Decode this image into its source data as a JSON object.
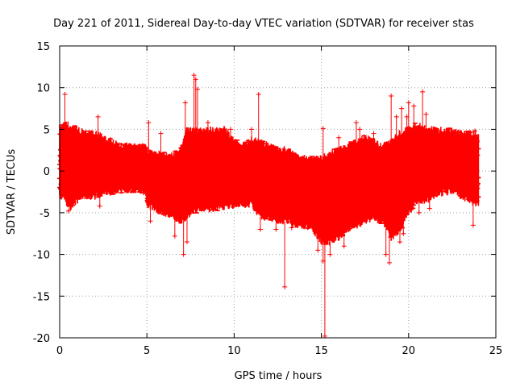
{
  "chart_data": {
    "type": "scatter",
    "title": "Day 221 of 2011, Sidereal Day-to-day VTEC variation (SDTVAR) for receiver stas",
    "xlabel": "GPS time / hours",
    "ylabel": "SDTVAR / TECUs",
    "xlim": [
      0,
      25
    ],
    "ylim": [
      -20,
      15
    ],
    "xticks": [
      0,
      5,
      10,
      15,
      20,
      25
    ],
    "yticks": [
      15,
      10,
      5,
      0,
      -5,
      -10,
      -15,
      -20
    ],
    "grid": true,
    "marker": "+",
    "color": "#ff0000",
    "series": [
      {
        "name": "SDTVAR",
        "band_x": [
          0,
          0.3,
          0.5,
          1,
          1.5,
          2,
          2.5,
          3,
          3.5,
          4,
          4.5,
          4.9,
          5.0,
          5.5,
          6,
          6.5,
          7,
          7.3,
          7.5,
          8,
          8.5,
          9,
          9.5,
          10,
          10.5,
          11,
          11.5,
          12,
          12.5,
          13,
          13.5,
          14,
          14.5,
          15,
          15.5,
          16,
          16.5,
          17,
          17.5,
          18,
          18.5,
          19,
          19.5,
          20,
          20.5,
          21,
          21.5,
          22,
          22.5,
          23,
          23.5,
          24
        ],
        "band_upper": [
          5.5,
          5.5,
          5.5,
          5.0,
          4.5,
          4.5,
          4.0,
          3.5,
          3.0,
          3.0,
          2.8,
          3.0,
          2.5,
          2.0,
          2.0,
          1.8,
          3.0,
          5.0,
          4.8,
          4.8,
          5.0,
          4.8,
          5.0,
          3.5,
          3.0,
          3.8,
          3.5,
          3.0,
          2.8,
          2.5,
          2.0,
          1.5,
          1.5,
          1.5,
          2.0,
          2.5,
          3.0,
          3.5,
          4.0,
          3.5,
          3.0,
          3.5,
          4.5,
          5.0,
          5.5,
          5.0,
          5.0,
          4.8,
          4.8,
          4.5,
          4.5,
          4.5
        ],
        "band_lower": [
          -3.0,
          -3.0,
          -4.5,
          -3.5,
          -3.0,
          -3.0,
          -2.5,
          -2.5,
          -2.3,
          -2.2,
          -2.2,
          -2.5,
          -4.0,
          -4.5,
          -5.0,
          -5.5,
          -6.0,
          -5.5,
          -5.0,
          -4.5,
          -4.5,
          -4.5,
          -4.2,
          -4.2,
          -4.0,
          -4.0,
          -5.5,
          -5.5,
          -6.0,
          -6.0,
          -6.5,
          -6.5,
          -7.0,
          -8.5,
          -8.5,
          -8.0,
          -7.0,
          -6.5,
          -6.0,
          -5.5,
          -6.0,
          -8.0,
          -7.0,
          -5.0,
          -3.5,
          -3.5,
          -3.0,
          -2.5,
          -2.5,
          -3.0,
          -3.5,
          -4.0
        ],
        "spikes": [
          {
            "x": 0.3,
            "y": 9.2
          },
          {
            "x": 0.5,
            "y": -4.8
          },
          {
            "x": 2.2,
            "y": 6.5
          },
          {
            "x": 2.3,
            "y": -4.2
          },
          {
            "x": 5.1,
            "y": 5.8
          },
          {
            "x": 5.2,
            "y": -6.0
          },
          {
            "x": 5.8,
            "y": 4.5
          },
          {
            "x": 6.6,
            "y": -7.8
          },
          {
            "x": 7.1,
            "y": -10.0
          },
          {
            "x": 7.3,
            "y": -8.5
          },
          {
            "x": 7.2,
            "y": 8.2
          },
          {
            "x": 7.7,
            "y": 11.5
          },
          {
            "x": 7.8,
            "y": 11.0
          },
          {
            "x": 7.9,
            "y": 9.8
          },
          {
            "x": 8.5,
            "y": 5.8
          },
          {
            "x": 9.8,
            "y": 5.0
          },
          {
            "x": 11.4,
            "y": 9.2
          },
          {
            "x": 11.5,
            "y": -7.0
          },
          {
            "x": 11.0,
            "y": 5.0
          },
          {
            "x": 12.4,
            "y": -7.0
          },
          {
            "x": 12.9,
            "y": -13.9
          },
          {
            "x": 13.3,
            "y": -6.8
          },
          {
            "x": 14.8,
            "y": -9.5
          },
          {
            "x": 15.1,
            "y": 5.1
          },
          {
            "x": 15.1,
            "y": -10.8
          },
          {
            "x": 15.5,
            "y": -10.0
          },
          {
            "x": 15.2,
            "y": -19.8
          },
          {
            "x": 16.3,
            "y": -9.0
          },
          {
            "x": 16.0,
            "y": 4.0
          },
          {
            "x": 17.0,
            "y": 5.8
          },
          {
            "x": 17.2,
            "y": 5.0
          },
          {
            "x": 18.0,
            "y": 4.5
          },
          {
            "x": 18.7,
            "y": -10.0
          },
          {
            "x": 18.9,
            "y": -11.0
          },
          {
            "x": 19.0,
            "y": 9.0
          },
          {
            "x": 19.3,
            "y": 6.5
          },
          {
            "x": 19.5,
            "y": -8.5
          },
          {
            "x": 19.7,
            "y": -7.5
          },
          {
            "x": 19.6,
            "y": 7.5
          },
          {
            "x": 19.9,
            "y": 6.5
          },
          {
            "x": 20.0,
            "y": 8.2
          },
          {
            "x": 20.3,
            "y": 7.8
          },
          {
            "x": 20.6,
            "y": -5.0
          },
          {
            "x": 20.8,
            "y": 9.5
          },
          {
            "x": 21.0,
            "y": 6.8
          },
          {
            "x": 21.2,
            "y": -4.5
          },
          {
            "x": 23.7,
            "y": -6.5
          },
          {
            "x": 23.8,
            "y": 4.8
          }
        ]
      }
    ]
  }
}
